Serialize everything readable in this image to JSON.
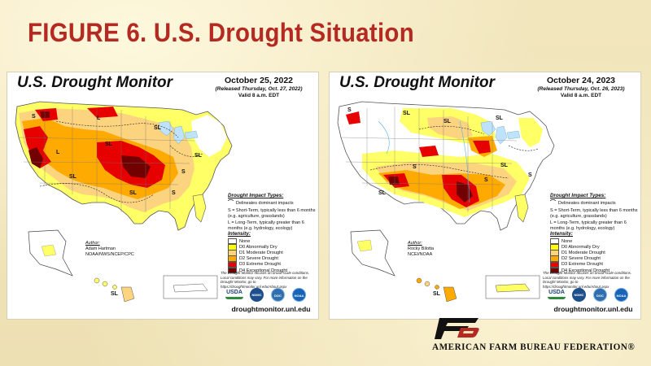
{
  "figure": {
    "title": "FIGURE 6. U.S. Drought Situation"
  },
  "maps": [
    {
      "heading": "U.S. Drought Monitor",
      "date": "October 25, 2022",
      "released": "(Released Thursday, Oct. 27, 2022)",
      "valid": "Valid 8 a.m. EDT",
      "author_label": "Author:",
      "author_name": "Adam Hartman",
      "author_org": "NOAA/NWS/NCEP/CPC",
      "labels": [
        "S",
        "L",
        "SL",
        "SL",
        "SL",
        "SL",
        "S",
        "SL",
        "S",
        "L",
        "SL"
      ]
    },
    {
      "heading": "U.S. Drought Monitor",
      "date": "October 24, 2023",
      "released": "(Released Thursday, Oct. 26, 2023)",
      "valid": "Valid 8 a.m. EDT",
      "author_label": "Author:",
      "author_name": "Rocky Bilotta",
      "author_org": "NCEI/NOAA",
      "labels": [
        "S",
        "SL",
        "SL",
        "SL",
        "SL",
        "SL",
        "S",
        "S",
        "S",
        "SL"
      ]
    }
  ],
  "impact": {
    "heading": "Drought Impact Types:",
    "delineates": "Delineates dominant impacts",
    "short_term": "S = Short-Term, typically less than 6 months (e.g. agriculture, grasslands)",
    "long_term": "L = Long-Term, typically greater than 6 months (e.g. hydrology, ecology)",
    "s_symbol": "S",
    "l_symbol": "L"
  },
  "intensity": {
    "heading": "Intensity:",
    "levels": [
      {
        "label": "None",
        "color": "#ffffff"
      },
      {
        "label": "D0 Abnormally Dry",
        "color": "#ffff00"
      },
      {
        "label": "D1 Moderate Drought",
        "color": "#fcd37f"
      },
      {
        "label": "D2 Severe Drought",
        "color": "#ffaa00"
      },
      {
        "label": "D3 Extreme Drought",
        "color": "#e60000"
      },
      {
        "label": "D4 Exceptional Drought",
        "color": "#730000"
      }
    ]
  },
  "disclaimer": "The Drought Monitor focuses on broad-scale conditions. Local conditions may vary. For more information on the Drought Monitor, go to https://droughtmonitor.unl.edu/About.aspx",
  "logos": {
    "usda": "USDA",
    "ndmc": "NDMC",
    "doc": "DOC",
    "noaa": "NOAA"
  },
  "website": "droughtmonitor.unl.edu",
  "footer": {
    "org": "AMERICAN FARM BUREAU FEDERATION®"
  },
  "colors": {
    "title": "#b42a23",
    "background": "#efe3b8"
  }
}
